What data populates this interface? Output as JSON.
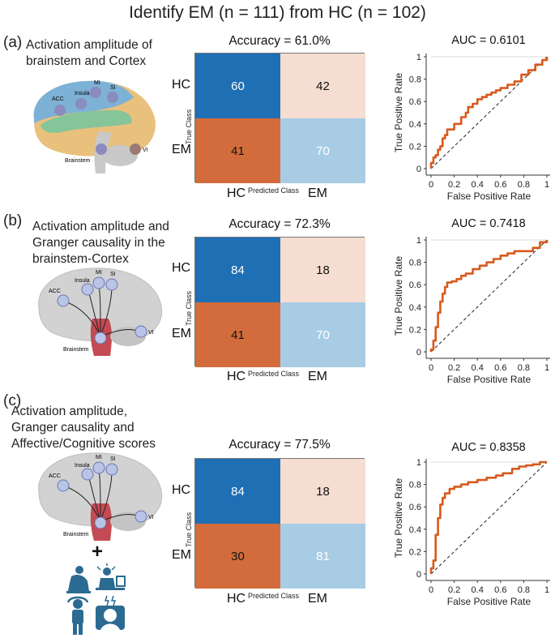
{
  "title": "Identify EM (n = 111) from HC (n = 102)",
  "colors": {
    "tp": "#1f6fb4",
    "fn": "#f6ddd1",
    "fp": "#d36c3c",
    "tn": "#a9cce5",
    "roc": "#d85a1c",
    "brain_cortex": "#d2d2d2",
    "brain_green": "#86c49a",
    "brain_blue": "#7db1d6",
    "brain_yellow": "#e9c07c",
    "node": "#8a8bbf",
    "icon": "#2c6b91"
  },
  "panels": [
    {
      "letter": "(a)",
      "description_lines": [
        "Activation amplitude of",
        "brainstem and Cortex"
      ],
      "brain_labels": [
        "MI",
        "SI",
        "ACC",
        "Insula",
        "VI",
        "Brainstem"
      ],
      "accuracy_title": "Accuracy = 61.0%",
      "auc_title": "AUC = 0.6101"
    },
    {
      "letter": "(b)",
      "description_lines": [
        "Activation amplitude and",
        "Granger causality in the",
        "brainstem-Cortex"
      ],
      "brain_labels": [
        "MI",
        "SI",
        "ACC",
        "Insula",
        "VI",
        "Brainstem"
      ],
      "accuracy_title": "Accuracy = 72.3%",
      "auc_title": "AUC = 0.7418"
    },
    {
      "letter": "(c)",
      "description_lines": [
        "Activation amplitude,",
        "Granger causality and",
        "Affective/Cognitive scores"
      ],
      "brain_labels": [
        "MI",
        "SI",
        "ACC",
        "Insula",
        "VI",
        "Brainstem"
      ],
      "plus_sign": "+",
      "score_icons": [
        "depressed-person-icon",
        "stressed-worker-icon",
        "anxious-person-icon",
        "overloaded-brain-icon"
      ],
      "accuracy_title": "Accuracy = 77.5%",
      "auc_title": "AUC = 0.8358"
    }
  ],
  "chart_data": [
    {
      "type": "heatmap",
      "title": "Accuracy = 61.0%",
      "row_labels": [
        "HC",
        "EM"
      ],
      "col_labels": [
        "HC",
        "EM"
      ],
      "ylabel": "True Class",
      "xlabel": "Predicted Class",
      "values": [
        [
          60,
          42
        ],
        [
          41,
          70
        ]
      ]
    },
    {
      "type": "line",
      "title": "AUC = 0.6101",
      "xlabel": "False Positive Rate",
      "ylabel": "True Positive Rate",
      "xlim": [
        0,
        1
      ],
      "ylim": [
        0,
        1
      ],
      "x_ticks": [
        "0",
        "0.2",
        "0.4",
        "0.6",
        "0.8",
        "1"
      ],
      "y_ticks": [
        "0",
        "0.2",
        "0.4",
        "0.6",
        "0.8",
        "1"
      ],
      "series": [
        {
          "name": "ROC",
          "x": [
            0,
            0.0,
            0.02,
            0.04,
            0.06,
            0.08,
            0.1,
            0.12,
            0.14,
            0.16,
            0.2,
            0.22,
            0.26,
            0.3,
            0.32,
            0.36,
            0.4,
            0.44,
            0.48,
            0.52,
            0.56,
            0.6,
            0.66,
            0.72,
            0.78,
            0.84,
            0.9,
            0.96,
            1.0
          ],
          "y": [
            0,
            0.05,
            0.1,
            0.12,
            0.17,
            0.2,
            0.27,
            0.3,
            0.35,
            0.35,
            0.4,
            0.4,
            0.46,
            0.5,
            0.55,
            0.58,
            0.62,
            0.64,
            0.66,
            0.68,
            0.7,
            0.72,
            0.75,
            0.78,
            0.84,
            0.88,
            0.93,
            0.97,
            1.0
          ]
        },
        {
          "name": "Chance",
          "x": [
            0,
            1
          ],
          "y": [
            0,
            1
          ]
        }
      ]
    },
    {
      "type": "heatmap",
      "title": "Accuracy = 72.3%",
      "row_labels": [
        "HC",
        "EM"
      ],
      "col_labels": [
        "HC",
        "EM"
      ],
      "ylabel": "True Class",
      "xlabel": "Predicted Class",
      "values": [
        [
          84,
          18
        ],
        [
          41,
          70
        ]
      ]
    },
    {
      "type": "line",
      "title": "AUC = 0.7418",
      "xlabel": "False Positive Rate",
      "ylabel": "True Positive Rate",
      "xlim": [
        0,
        1
      ],
      "ylim": [
        0,
        1
      ],
      "x_ticks": [
        "0",
        "0.2",
        "0.4",
        "0.6",
        "0.8",
        "1"
      ],
      "y_ticks": [
        "0",
        "0.2",
        "0.4",
        "0.6",
        "0.8",
        "1"
      ],
      "series": [
        {
          "name": "ROC",
          "x": [
            0,
            0.0,
            0.02,
            0.04,
            0.06,
            0.08,
            0.1,
            0.12,
            0.14,
            0.18,
            0.22,
            0.26,
            0.3,
            0.36,
            0.42,
            0.48,
            0.54,
            0.6,
            0.66,
            0.72,
            0.8,
            0.88,
            0.94,
            1.0
          ],
          "y": [
            0,
            0.02,
            0.1,
            0.22,
            0.35,
            0.45,
            0.52,
            0.58,
            0.62,
            0.63,
            0.65,
            0.68,
            0.7,
            0.74,
            0.77,
            0.8,
            0.83,
            0.86,
            0.88,
            0.9,
            0.9,
            0.93,
            0.98,
            1.0
          ]
        },
        {
          "name": "Chance",
          "x": [
            0,
            1
          ],
          "y": [
            0,
            1
          ]
        }
      ]
    },
    {
      "type": "heatmap",
      "title": "Accuracy = 77.5%",
      "row_labels": [
        "HC",
        "EM"
      ],
      "col_labels": [
        "HC",
        "EM"
      ],
      "ylabel": "True Class",
      "xlabel": "Predicted Class",
      "values": [
        [
          84,
          18
        ],
        [
          30,
          81
        ]
      ]
    },
    {
      "type": "line",
      "title": "AUC = 0.8358",
      "xlabel": "False Positive Rate",
      "ylabel": "True Positive Rate",
      "xlim": [
        0,
        1
      ],
      "ylim": [
        0,
        1
      ],
      "x_ticks": [
        "0",
        "0.2",
        "0.4",
        "0.6",
        "0.8",
        "1"
      ],
      "y_ticks": [
        "0",
        "0.2",
        "0.4",
        "0.6",
        "0.8",
        "1"
      ],
      "series": [
        {
          "name": "ROC",
          "x": [
            0,
            0.0,
            0.02,
            0.04,
            0.06,
            0.08,
            0.1,
            0.12,
            0.16,
            0.2,
            0.26,
            0.32,
            0.4,
            0.48,
            0.56,
            0.62,
            0.7,
            0.76,
            0.82,
            0.88,
            0.94,
            1.0
          ],
          "y": [
            0,
            0.05,
            0.12,
            0.35,
            0.5,
            0.62,
            0.68,
            0.72,
            0.76,
            0.78,
            0.8,
            0.82,
            0.84,
            0.86,
            0.88,
            0.9,
            0.94,
            0.96,
            0.97,
            0.98,
            1.0,
            1.0
          ]
        },
        {
          "name": "Chance",
          "x": [
            0,
            1
          ],
          "y": [
            0,
            1
          ]
        }
      ]
    }
  ]
}
